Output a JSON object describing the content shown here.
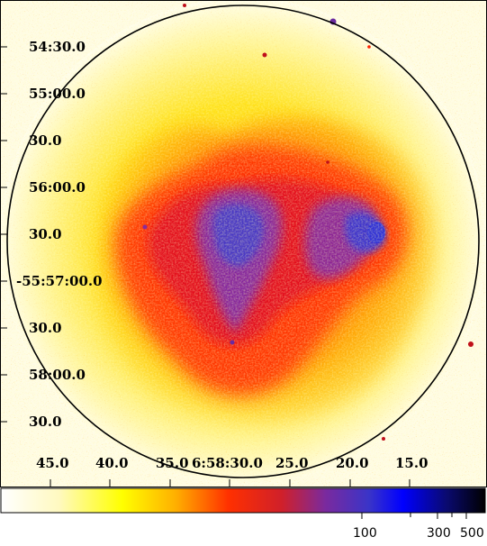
{
  "image": {
    "colormap": [
      "#ffffff",
      "#ffff00",
      "#ff8000",
      "#ff0000",
      "#8a2b9a",
      "#3a34c8",
      "#0000ff",
      "#000000"
    ],
    "border_color": "#000000",
    "circle_color": "#000000"
  },
  "axes": {
    "dec_labels": [
      "54:30.0",
      "55:00.0",
      "30.0",
      "56:00.0",
      "30.0",
      "-55:57:00.0",
      "30.0",
      "58:00.0",
      "30.0"
    ],
    "ra_labels": [
      "45.0",
      "40.0",
      "35.0",
      "6:58:30.0",
      "25.0",
      "20.0",
      "15.0"
    ]
  },
  "colorbar": {
    "tick_labels": [
      "100",
      "300",
      "500"
    ]
  }
}
